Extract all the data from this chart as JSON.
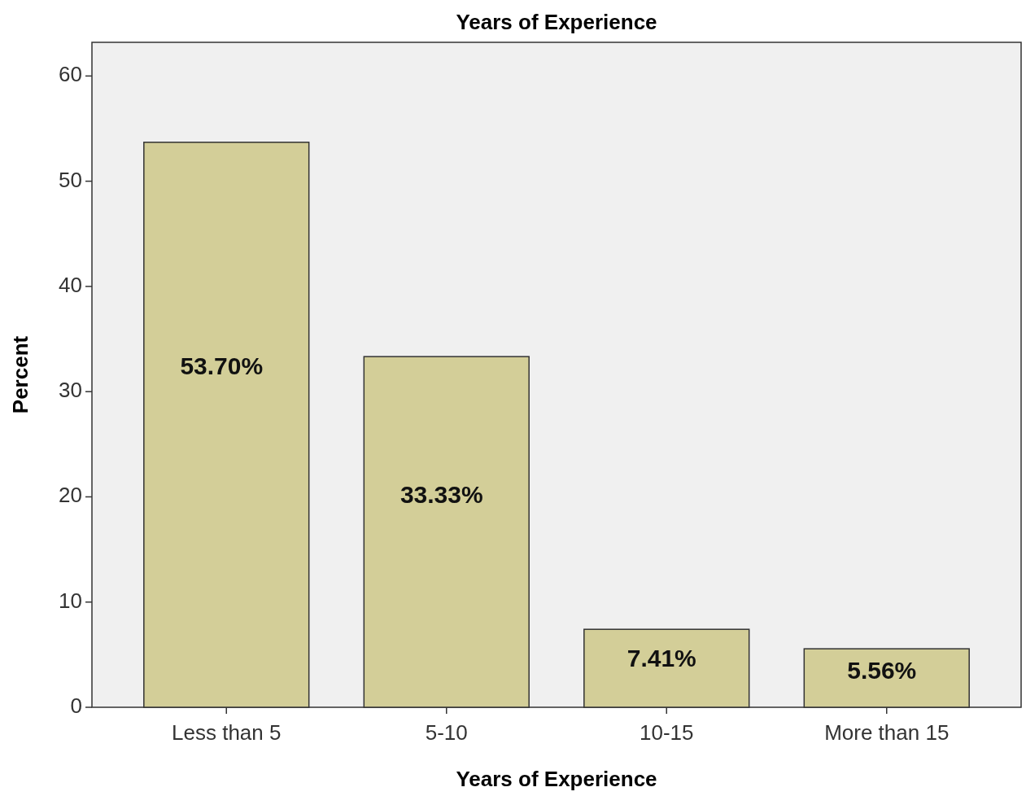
{
  "chart_data": {
    "type": "bar",
    "title": "Years of Experience",
    "xlabel": "Years of Experience",
    "ylabel": "Percent",
    "categories": [
      "Less than 5",
      "5-10",
      "10-15",
      "More than 15"
    ],
    "values": [
      53.7,
      33.33,
      7.41,
      5.56
    ],
    "value_labels": [
      "53.70%",
      "33.33%",
      "7.41%",
      "5.56%"
    ],
    "color": "#d3ce98",
    "ylim": [
      0,
      63.2
    ],
    "yticks": [
      0,
      10,
      20,
      30,
      40,
      50,
      60
    ],
    "grid": false
  }
}
